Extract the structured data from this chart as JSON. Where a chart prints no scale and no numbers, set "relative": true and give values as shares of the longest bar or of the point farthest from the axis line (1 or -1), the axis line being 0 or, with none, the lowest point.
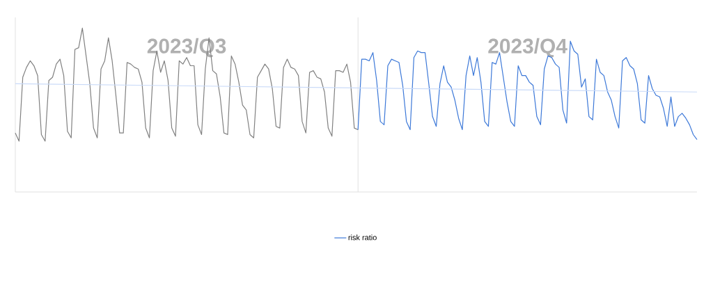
{
  "chart_data": {
    "type": "line",
    "relative": true,
    "legend": "bottom",
    "categories": [
      null,
      null,
      null,
      null,
      null,
      null,
      null,
      null,
      null,
      null,
      null,
      null,
      null,
      null,
      null,
      null,
      null,
      null,
      null,
      null,
      null,
      null,
      null,
      null,
      null,
      null,
      null,
      null,
      null,
      null,
      null,
      null,
      null,
      null,
      null,
      null,
      null,
      null,
      null,
      null,
      null,
      null,
      null,
      null,
      null,
      null,
      null,
      null,
      null,
      null,
      null,
      null,
      null,
      null,
      null,
      null,
      null,
      null,
      null,
      null,
      null,
      null,
      null,
      null,
      null,
      null,
      null,
      null,
      null,
      null,
      null,
      null,
      null,
      null,
      null,
      null,
      null,
      null,
      null,
      null,
      null,
      null,
      null,
      null,
      null,
      null,
      null,
      null,
      null,
      null,
      null,
      null,
      null,
      null,
      null,
      null,
      null,
      null,
      null,
      null,
      null,
      null,
      null,
      null,
      null,
      null,
      null,
      null,
      null,
      null,
      null,
      null,
      null,
      null,
      null,
      null,
      null,
      null,
      null,
      null,
      null,
      null,
      null,
      null,
      null,
      null,
      null,
      null,
      null,
      null,
      null,
      null,
      null,
      null,
      null,
      null,
      null,
      null,
      null,
      null,
      null,
      null,
      null,
      null,
      null,
      null,
      null,
      null,
      null,
      null,
      null,
      null,
      null,
      null,
      null,
      null,
      null,
      null,
      null,
      null,
      null,
      null,
      null,
      null,
      null,
      null,
      null,
      null,
      null,
      null,
      null,
      null,
      null,
      null,
      null,
      null,
      null,
      null,
      null,
      null,
      null,
      null,
      null,
      null
    ],
    "series": [
      {
        "color": "#808080",
        "values": [
          0.36,
          0.31,
          0.7,
          0.76,
          0.8,
          0.77,
          0.71,
          0.35,
          0.31,
          0.68,
          0.7,
          0.78,
          0.81,
          0.71,
          0.37,
          0.33,
          0.87,
          0.88,
          1.0,
          0.83,
          0.66,
          0.39,
          0.33,
          0.75,
          0.8,
          0.94,
          0.8,
          0.59,
          0.36,
          0.36,
          0.79,
          0.78,
          0.76,
          0.75,
          0.67,
          0.39,
          0.33,
          0.74,
          0.86,
          0.73,
          0.8,
          0.68,
          0.39,
          0.34,
          0.8,
          0.78,
          0.82,
          0.77,
          0.77,
          0.41,
          0.35,
          0.75,
          0.94,
          0.74,
          0.72,
          0.58,
          0.36,
          0.35,
          0.83,
          0.78,
          0.67,
          0.53,
          0.5,
          0.35,
          0.33,
          0.7,
          0.74,
          0.78,
          0.75,
          0.63,
          0.4,
          0.39,
          0.76,
          0.81,
          0.76,
          0.75,
          0.71,
          0.43,
          0.36,
          0.73,
          0.74,
          0.7,
          0.69,
          0.61,
          0.39,
          0.34,
          0.74,
          0.74,
          0.73,
          0.78,
          0.67,
          0.39,
          0.38,
          null,
          null,
          null,
          null,
          null,
          null,
          null,
          null,
          null,
          null,
          null,
          null,
          null,
          null,
          null,
          null,
          null,
          null,
          null,
          null,
          null,
          null,
          null,
          null,
          null,
          null,
          null,
          null,
          null,
          null,
          null,
          null,
          null,
          null,
          null,
          null,
          null,
          null,
          null,
          null,
          null,
          null,
          null,
          null,
          null,
          null,
          null,
          null,
          null,
          null,
          null,
          null,
          null,
          null,
          null,
          null,
          null,
          null,
          null,
          null,
          null,
          null,
          null,
          null,
          null,
          null,
          null,
          null,
          null,
          null,
          null,
          null,
          null,
          null,
          null,
          null,
          null,
          null,
          null,
          null,
          null,
          null,
          null,
          null,
          null,
          null,
          null,
          null,
          null,
          null,
          null
        ]
      },
      {
        "name": "risk ratio",
        "color": "#3c78d8",
        "values": [
          null,
          null,
          null,
          null,
          null,
          null,
          null,
          null,
          null,
          null,
          null,
          null,
          null,
          null,
          null,
          null,
          null,
          null,
          null,
          null,
          null,
          null,
          null,
          null,
          null,
          null,
          null,
          null,
          null,
          null,
          null,
          null,
          null,
          null,
          null,
          null,
          null,
          null,
          null,
          null,
          null,
          null,
          null,
          null,
          null,
          null,
          null,
          null,
          null,
          null,
          null,
          null,
          null,
          null,
          null,
          null,
          null,
          null,
          null,
          null,
          null,
          null,
          null,
          null,
          null,
          null,
          null,
          null,
          null,
          null,
          null,
          null,
          null,
          null,
          null,
          null,
          null,
          null,
          null,
          null,
          null,
          null,
          null,
          null,
          null,
          null,
          null,
          null,
          null,
          null,
          null,
          null,
          0.38,
          0.81,
          0.81,
          0.8,
          0.85,
          0.68,
          0.43,
          0.41,
          0.77,
          0.81,
          0.8,
          0.79,
          0.65,
          0.43,
          0.38,
          0.82,
          0.86,
          0.85,
          0.85,
          0.66,
          0.46,
          0.4,
          0.66,
          0.77,
          0.67,
          0.64,
          0.56,
          0.45,
          0.38,
          0.71,
          0.83,
          0.71,
          0.82,
          0.67,
          0.43,
          0.4,
          0.79,
          0.78,
          0.85,
          0.7,
          0.55,
          0.43,
          0.4,
          0.77,
          0.71,
          0.71,
          0.67,
          0.65,
          0.46,
          0.41,
          0.75,
          0.83,
          0.82,
          0.78,
          0.76,
          0.5,
          0.42,
          0.92,
          0.86,
          0.84,
          0.64,
          0.69,
          0.46,
          0.44,
          0.81,
          0.73,
          0.71,
          0.61,
          0.56,
          0.46,
          0.39,
          0.8,
          0.82,
          0.77,
          0.75,
          0.66,
          0.44,
          0.42,
          0.71,
          0.63,
          0.59,
          0.58,
          0.51,
          0.4,
          0.58,
          0.4,
          0.46,
          0.48,
          0.45,
          0.41,
          0.35,
          0.32
        ]
      },
      {
        "type": "line",
        "color": "#c9daf8",
        "values": [
          0.66,
          null,
          null,
          null,
          null,
          null,
          null,
          null,
          null,
          null,
          null,
          null,
          null,
          null,
          null,
          null,
          null,
          null,
          null,
          null,
          null,
          null,
          null,
          null,
          null,
          null,
          null,
          null,
          null,
          null,
          null,
          null,
          null,
          null,
          null,
          null,
          null,
          null,
          null,
          null,
          null,
          null,
          null,
          null,
          null,
          null,
          null,
          null,
          null,
          null,
          null,
          null,
          null,
          null,
          null,
          null,
          null,
          null,
          null,
          null,
          null,
          null,
          null,
          null,
          null,
          null,
          null,
          null,
          null,
          null,
          null,
          null,
          null,
          null,
          null,
          null,
          null,
          null,
          null,
          null,
          null,
          null,
          null,
          null,
          null,
          null,
          null,
          null,
          null,
          null,
          null,
          null,
          null,
          null,
          null,
          null,
          null,
          null,
          null,
          null,
          null,
          null,
          null,
          null,
          null,
          null,
          null,
          null,
          null,
          null,
          null,
          null,
          null,
          null,
          null,
          null,
          null,
          null,
          null,
          null,
          null,
          null,
          null,
          null,
          null,
          null,
          null,
          null,
          null,
          null,
          null,
          null,
          null,
          null,
          null,
          null,
          null,
          null,
          null,
          null,
          null,
          null,
          null,
          null,
          null,
          null,
          null,
          null,
          null,
          null,
          null,
          null,
          null,
          null,
          null,
          null,
          null,
          null,
          null,
          null,
          null,
          null,
          null,
          null,
          null,
          null,
          null,
          null,
          null,
          null,
          null,
          null,
          null,
          null,
          null,
          null,
          null,
          null,
          null,
          null,
          null,
          null,
          null,
          0.61
        ]
      }
    ],
    "annotations": [
      "2023/Q3",
      "2023/Q4"
    ]
  }
}
